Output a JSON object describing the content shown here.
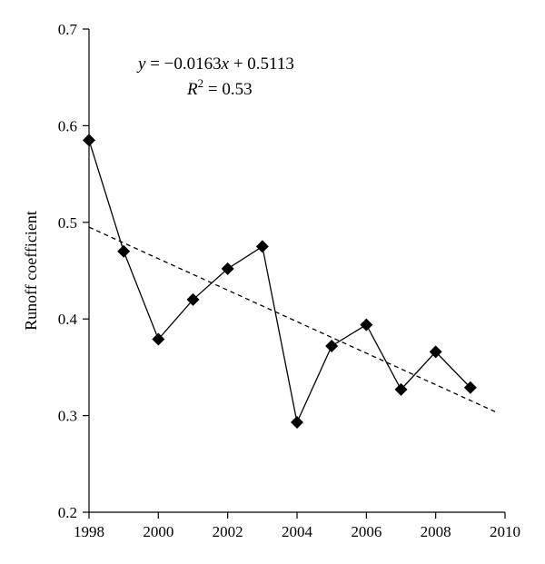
{
  "chart_data": {
    "type": "scatter",
    "title": "",
    "xlabel": "",
    "ylabel": "Runoff coefficient",
    "xlim": [
      1998,
      2010
    ],
    "ylim": [
      0.2,
      0.7
    ],
    "x_ticks": [
      1998,
      2000,
      2002,
      2004,
      2006,
      2008,
      2010
    ],
    "y_ticks": [
      0.2,
      0.3,
      0.4,
      0.5,
      0.6,
      0.7
    ],
    "y_tick_labels": [
      "0.2",
      "0.3",
      "0.4",
      "0.5",
      "0.6",
      "0.7"
    ],
    "grid": false,
    "marker": "diamond",
    "line_connected": true,
    "series": [
      {
        "x": [
          1998,
          1999,
          2000,
          2001,
          2002,
          2003,
          2004,
          2005,
          2006,
          2007,
          2008,
          2009
        ],
        "y": [
          0.585,
          0.47,
          0.379,
          0.42,
          0.452,
          0.475,
          0.293,
          0.372,
          0.394,
          0.327,
          0.366,
          0.329
        ]
      }
    ],
    "trendline": {
      "style": "dashed",
      "slope": -0.0163,
      "intercept": 0.5113,
      "equation_parts": {
        "lhs": "y",
        "rhs": " = −0.0163",
        "var": "x",
        "tail": " + 0.5113"
      },
      "r2_parts": {
        "sym": "R",
        "exp": "2",
        "rest": " = 0.53"
      }
    }
  }
}
